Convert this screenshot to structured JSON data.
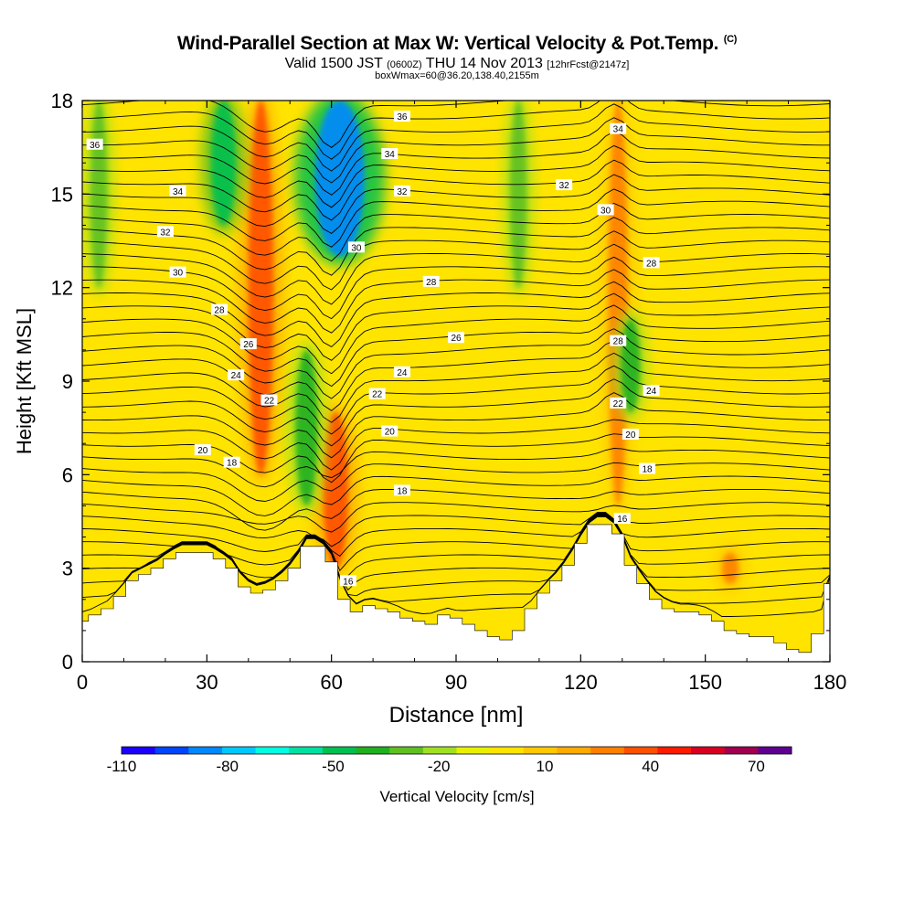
{
  "title": {
    "main": "Wind-Parallel Section at Max W: Vertical Velocity & Pot.Temp.",
    "copyright": "(C)",
    "valid_prefix": "Valid 1500 JST",
    "valid_utc": "(0600Z)",
    "valid_date": "THU 14 Nov 2013",
    "forecast": "[12hrFcst@2147z]",
    "box": "boxWmax=60@36.20,138.40,2155m"
  },
  "colors": {
    "background_field": "#ffe400",
    "terrain": "#ffffff",
    "contour": "#000000"
  },
  "colorbar": {
    "title": "Vertical Velocity [cm/s]",
    "tick_labels": [
      "-110",
      "-80",
      "-50",
      "-20",
      "10",
      "40",
      "70"
    ],
    "tick_values": [
      -110,
      -80,
      -50,
      -20,
      10,
      40,
      70
    ],
    "min": -110,
    "max": 80,
    "step": 10,
    "colors": [
      "#1a00ff",
      "#0044ff",
      "#0088ff",
      "#00c8ff",
      "#00ffe0",
      "#00e0a0",
      "#00c050",
      "#20b020",
      "#60c020",
      "#a0e020",
      "#e8f000",
      "#ffe400",
      "#ffc800",
      "#ffaa00",
      "#ff8000",
      "#ff5000",
      "#ff1a00",
      "#d80020",
      "#a00050",
      "#600090"
    ]
  },
  "chart_data": {
    "type": "heatmap",
    "title": "Wind-Parallel Section at Max W: Vertical Velocity & Pot.Temp.",
    "xlabel": "Distance [nm]",
    "ylabel": "Height [Kft MSL]",
    "xlim": [
      0,
      180
    ],
    "ylim": [
      0,
      18
    ],
    "x_ticks": [
      0,
      30,
      60,
      90,
      120,
      150,
      180
    ],
    "y_ticks": [
      0,
      3,
      6,
      9,
      12,
      15,
      18
    ],
    "terrain_profile": {
      "x": [
        0,
        3,
        6,
        9,
        12,
        15,
        18,
        21,
        24,
        27,
        30,
        33,
        36,
        39,
        42,
        45,
        48,
        51,
        54,
        57,
        60,
        63,
        66,
        69,
        72,
        75,
        78,
        81,
        84,
        87,
        90,
        93,
        96,
        99,
        102,
        105,
        108,
        111,
        114,
        117,
        120,
        123,
        126,
        129,
        132,
        135,
        138,
        141,
        144,
        147,
        150,
        153,
        156,
        159,
        162,
        165,
        168,
        171,
        174,
        177,
        180
      ],
      "height": [
        1.3,
        1.5,
        1.7,
        2.1,
        2.6,
        2.8,
        3.0,
        3.3,
        3.5,
        3.5,
        3.5,
        3.3,
        3.0,
        2.4,
        2.2,
        2.3,
        2.6,
        3.0,
        3.7,
        3.7,
        3.2,
        2.0,
        1.6,
        1.8,
        1.7,
        1.6,
        1.4,
        1.3,
        1.2,
        1.5,
        1.4,
        1.2,
        1.0,
        0.8,
        0.7,
        1.0,
        1.7,
        2.2,
        2.6,
        3.1,
        3.8,
        4.4,
        4.4,
        4.1,
        3.1,
        2.5,
        2.0,
        1.7,
        1.6,
        1.6,
        1.5,
        1.3,
        1.0,
        0.9,
        0.8,
        0.8,
        0.6,
        0.4,
        0.3,
        0.9,
        2.5
      ]
    },
    "vertical_velocity_features": [
      {
        "x": 43,
        "y_range": [
          6,
          18
        ],
        "value": 45,
        "label": "updraft"
      },
      {
        "x": 61,
        "y_range": [
          3,
          8
        ],
        "value": 45,
        "label": "updraft"
      },
      {
        "x": 62,
        "y_range": [
          13,
          18
        ],
        "value": -90,
        "label": "downdraft"
      },
      {
        "x": 54,
        "y_range": [
          5,
          10
        ],
        "value": -40,
        "label": "downdraft"
      },
      {
        "x": 34,
        "y_range": [
          14,
          18
        ],
        "value": -45,
        "label": "downdraft"
      },
      {
        "x": 4,
        "y_range": [
          12,
          18
        ],
        "value": -30,
        "label": "downdraft"
      },
      {
        "x": 105,
        "y_range": [
          12,
          18
        ],
        "value": -30,
        "label": "downdraft"
      },
      {
        "x": 129,
        "y_range": [
          5,
          18
        ],
        "value": 35,
        "label": "updraft"
      },
      {
        "x": 132,
        "y_range": [
          8,
          11
        ],
        "value": -35,
        "label": "downdraft"
      },
      {
        "x": 156,
        "y_range": [
          2.5,
          3.5
        ],
        "value": 30,
        "label": "updraft"
      }
    ],
    "contour_labels": [
      {
        "x": 3,
        "y": 16.6,
        "text": "36"
      },
      {
        "x": 23,
        "y": 15.1,
        "text": "34"
      },
      {
        "x": 20,
        "y": 13.8,
        "text": "32"
      },
      {
        "x": 23,
        "y": 12.5,
        "text": "30"
      },
      {
        "x": 33,
        "y": 11.3,
        "text": "28"
      },
      {
        "x": 40,
        "y": 10.2,
        "text": "26"
      },
      {
        "x": 37,
        "y": 9.2,
        "text": "24"
      },
      {
        "x": 45,
        "y": 8.4,
        "text": "22"
      },
      {
        "x": 29,
        "y": 6.8,
        "text": "20"
      },
      {
        "x": 36,
        "y": 6.4,
        "text": "18"
      },
      {
        "x": 77,
        "y": 17.5,
        "text": "36"
      },
      {
        "x": 74,
        "y": 16.3,
        "text": "34"
      },
      {
        "x": 77,
        "y": 15.1,
        "text": "32"
      },
      {
        "x": 66,
        "y": 13.3,
        "text": "30"
      },
      {
        "x": 84,
        "y": 12.2,
        "text": "28"
      },
      {
        "x": 90,
        "y": 10.4,
        "text": "26"
      },
      {
        "x": 77,
        "y": 9.3,
        "text": "24"
      },
      {
        "x": 71,
        "y": 8.6,
        "text": "22"
      },
      {
        "x": 74,
        "y": 7.4,
        "text": "20"
      },
      {
        "x": 77,
        "y": 5.5,
        "text": "18"
      },
      {
        "x": 64,
        "y": 2.6,
        "text": "16"
      },
      {
        "x": 129,
        "y": 17.1,
        "text": "34"
      },
      {
        "x": 116,
        "y": 15.3,
        "text": "32"
      },
      {
        "x": 126,
        "y": 14.5,
        "text": "30"
      },
      {
        "x": 137,
        "y": 12.8,
        "text": "28"
      },
      {
        "x": 129,
        "y": 10.3,
        "text": "28"
      },
      {
        "x": 137,
        "y": 8.7,
        "text": "24"
      },
      {
        "x": 129,
        "y": 8.3,
        "text": "22"
      },
      {
        "x": 132,
        "y": 7.3,
        "text": "20"
      },
      {
        "x": 136,
        "y": 6.2,
        "text": "18"
      },
      {
        "x": 130,
        "y": 4.6,
        "text": "16"
      }
    ]
  }
}
